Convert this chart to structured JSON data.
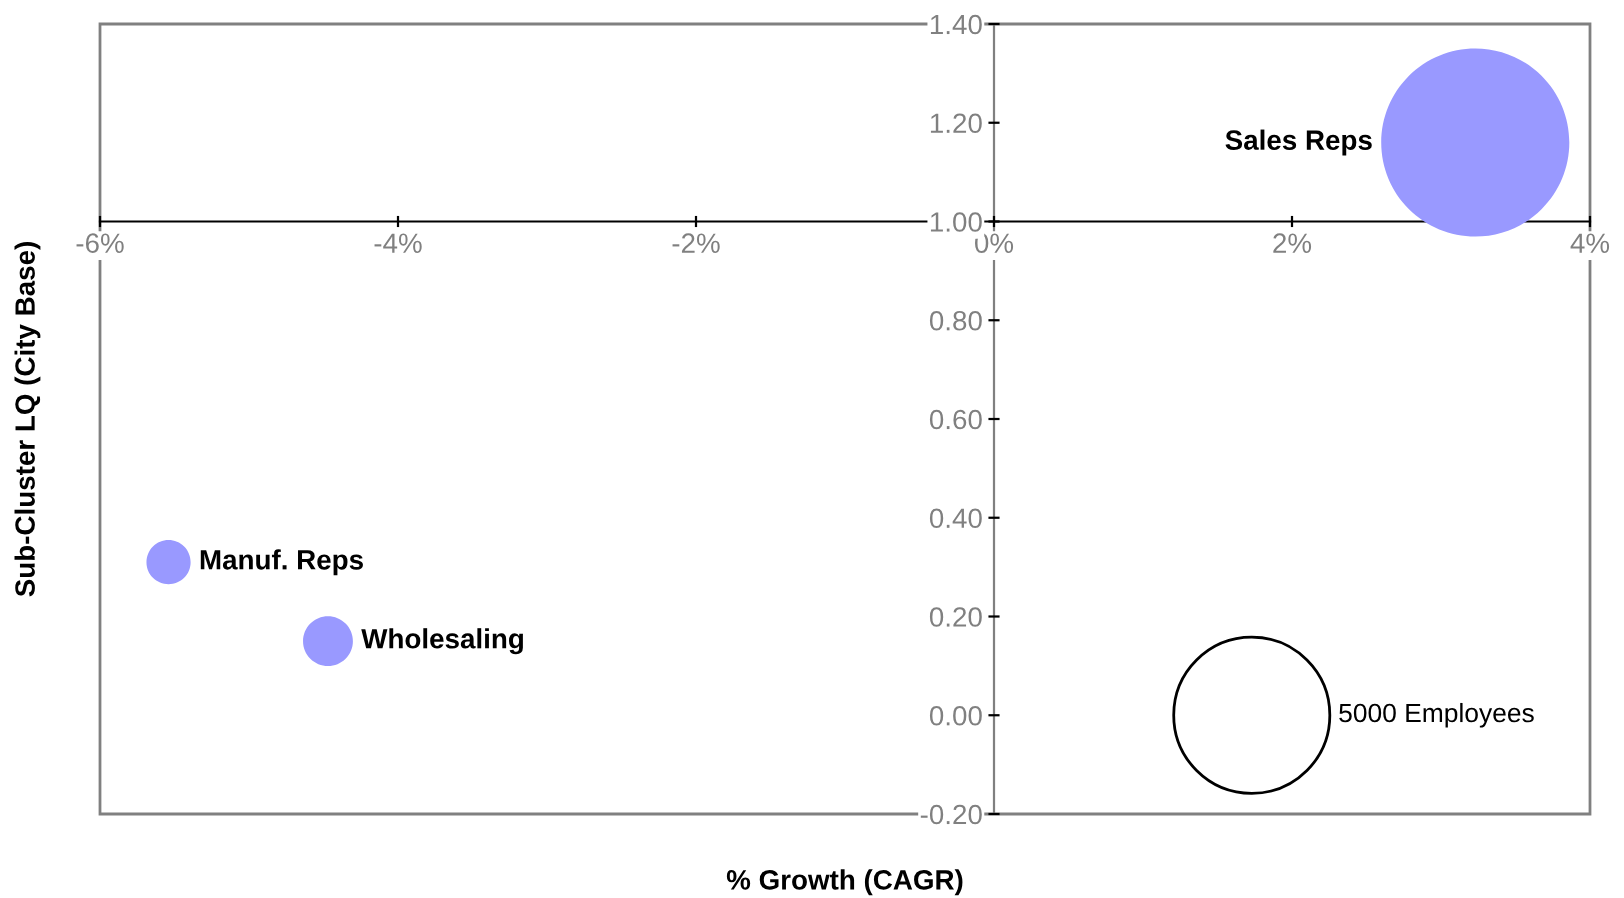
{
  "chart_data": {
    "type": "bubble",
    "xlabel": "% Growth (CAGR)",
    "ylabel": "Sub-Cluster LQ (City Base)",
    "series": [
      {
        "name": "Sales Reps",
        "color": "#9999ff",
        "x": [
          3.23
        ],
        "values": [
          1.16
        ],
        "sizes": [
          7260
        ]
      },
      {
        "name": "Manuf. Reps",
        "color": "#9999ff",
        "x": [
          -5.54
        ],
        "values": [
          0.31
        ],
        "sizes": [
          400
        ]
      },
      {
        "name": "Wholesaling",
        "color": "#9999ff",
        "x": [
          -4.47
        ],
        "values": [
          0.15
        ],
        "sizes": [
          510
        ]
      }
    ],
    "size_legend": [
      {
        "value": 5000,
        "label": "5000 Employees"
      }
    ],
    "xlim": [
      -6,
      4
    ],
    "ylim": [
      -0.2,
      1.4
    ],
    "xticks": [
      {
        "value": -6,
        "label": "-6%"
      },
      {
        "value": -4,
        "label": "-4%"
      },
      {
        "value": -2,
        "label": "-2%"
      },
      {
        "value": 0,
        "label": "0%"
      },
      {
        "value": 2,
        "label": "2%"
      },
      {
        "value": 4,
        "label": "4%"
      }
    ],
    "yticks": [
      {
        "value": -0.2,
        "label": "-0.20"
      },
      {
        "value": 0,
        "label": "0.00"
      },
      {
        "value": 0.2,
        "label": "0.20"
      },
      {
        "value": 0.4,
        "label": "0.40"
      },
      {
        "value": 0.6,
        "label": "0.60"
      },
      {
        "value": 0.8,
        "label": "0.80"
      },
      {
        "value": 1.0,
        "label": "1.00"
      },
      {
        "value": 1.2,
        "label": "1.20"
      },
      {
        "value": 1.4,
        "label": "1.40"
      }
    ],
    "grid": false,
    "legend": false
  }
}
